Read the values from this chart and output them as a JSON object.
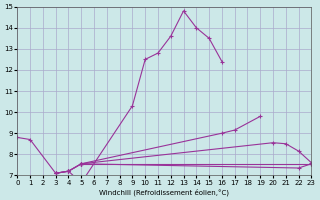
{
  "xlabel": "Windchill (Refroidissement éolien,°C)",
  "xlim": [
    0,
    23
  ],
  "ylim": [
    7,
    15
  ],
  "xticks": [
    0,
    1,
    2,
    3,
    4,
    5,
    6,
    7,
    8,
    9,
    10,
    11,
    12,
    13,
    14,
    15,
    16,
    17,
    18,
    19,
    20,
    21,
    22,
    23
  ],
  "yticks": [
    7,
    8,
    9,
    10,
    11,
    12,
    13,
    14,
    15
  ],
  "bg_color": "#cce8e8",
  "grid_color": "#aaaacc",
  "line_color": "#993399",
  "line1_x": [
    0,
    1,
    3,
    4,
    5,
    9,
    10,
    11,
    12,
    13,
    14,
    15,
    16
  ],
  "line1_y": [
    8.8,
    8.7,
    7.1,
    7.2,
    6.65,
    10.3,
    12.5,
    12.8,
    13.6,
    14.8,
    14.0,
    13.5,
    12.4
  ],
  "line2_x": [
    3,
    4,
    5,
    16,
    17,
    19
  ],
  "line2_y": [
    7.1,
    7.2,
    7.55,
    9.0,
    9.15,
    9.8
  ],
  "line3_x": [
    3,
    4,
    5,
    20,
    21,
    22,
    23
  ],
  "line3_y": [
    7.1,
    7.2,
    7.55,
    8.55,
    8.5,
    8.15,
    7.6
  ],
  "line4_x": [
    3,
    4,
    5,
    22,
    23
  ],
  "line4_y": [
    7.1,
    7.2,
    7.55,
    7.35,
    7.55
  ],
  "line5_x": [
    5,
    23
  ],
  "line5_y": [
    7.55,
    7.55
  ]
}
